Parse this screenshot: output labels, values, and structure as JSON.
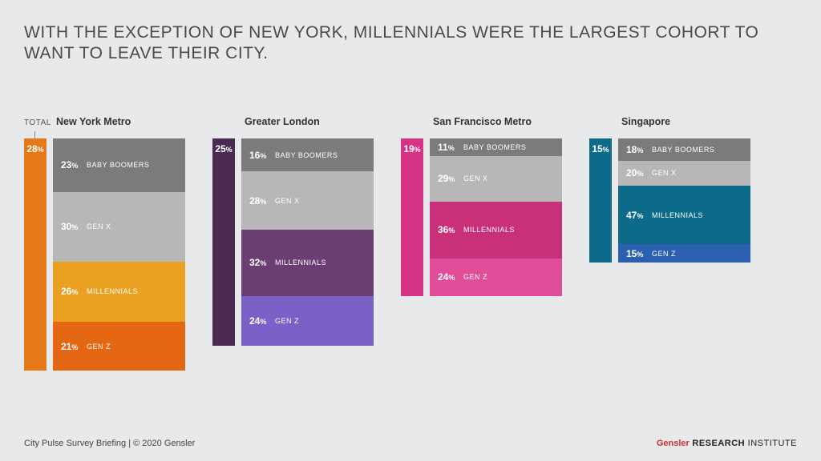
{
  "title": "WITH THE EXCEPTION OF NEW YORK, MILLENNIALS WERE THE LARGEST COHORT TO WANT TO LEAVE THEIR CITY.",
  "total_label": "TOTAL",
  "segment_labels": [
    "BABY BOOMERS",
    "GEN X",
    "MILLENNIALS",
    "GEN Z"
  ],
  "height_scale": 10.5,
  "segment_width": 165,
  "cities": [
    {
      "name": "New York Metro",
      "total_pct": 28,
      "total_color": "#e77817",
      "segments": [
        {
          "pct": 23,
          "color": "#7b7b7b"
        },
        {
          "pct": 30,
          "color": "#b7b7b7"
        },
        {
          "pct": 26,
          "color": "#eaa020"
        },
        {
          "pct": 21,
          "color": "#e46713"
        }
      ]
    },
    {
      "name": "Greater London",
      "total_pct": 25,
      "total_color": "#4b2a52",
      "segments": [
        {
          "pct": 16,
          "color": "#7b7b7b"
        },
        {
          "pct": 28,
          "color": "#b7b7b7"
        },
        {
          "pct": 32,
          "color": "#6a3d73"
        },
        {
          "pct": 24,
          "color": "#7a61c8"
        }
      ]
    },
    {
      "name": "San Francisco Metro",
      "total_pct": 19,
      "total_color": "#d63384",
      "segments": [
        {
          "pct": 11,
          "color": "#7b7b7b"
        },
        {
          "pct": 29,
          "color": "#b7b7b7"
        },
        {
          "pct": 36,
          "color": "#c9307a"
        },
        {
          "pct": 24,
          "color": "#e14d98"
        }
      ]
    },
    {
      "name": "Singapore",
      "total_pct": 15,
      "total_color": "#0d6b8a",
      "segments": [
        {
          "pct": 18,
          "color": "#7b7b7b"
        },
        {
          "pct": 20,
          "color": "#b7b7b7"
        },
        {
          "pct": 47,
          "color": "#0d6b8a"
        },
        {
          "pct": 15,
          "color": "#2b5fb0"
        }
      ]
    }
  ],
  "footer_left": "City Pulse Survey Briefing  |  © 2020 Gensler",
  "footer_brand": {
    "g": "Gensler",
    "r": " RESEARCH ",
    "i": "INSTITUTE"
  }
}
